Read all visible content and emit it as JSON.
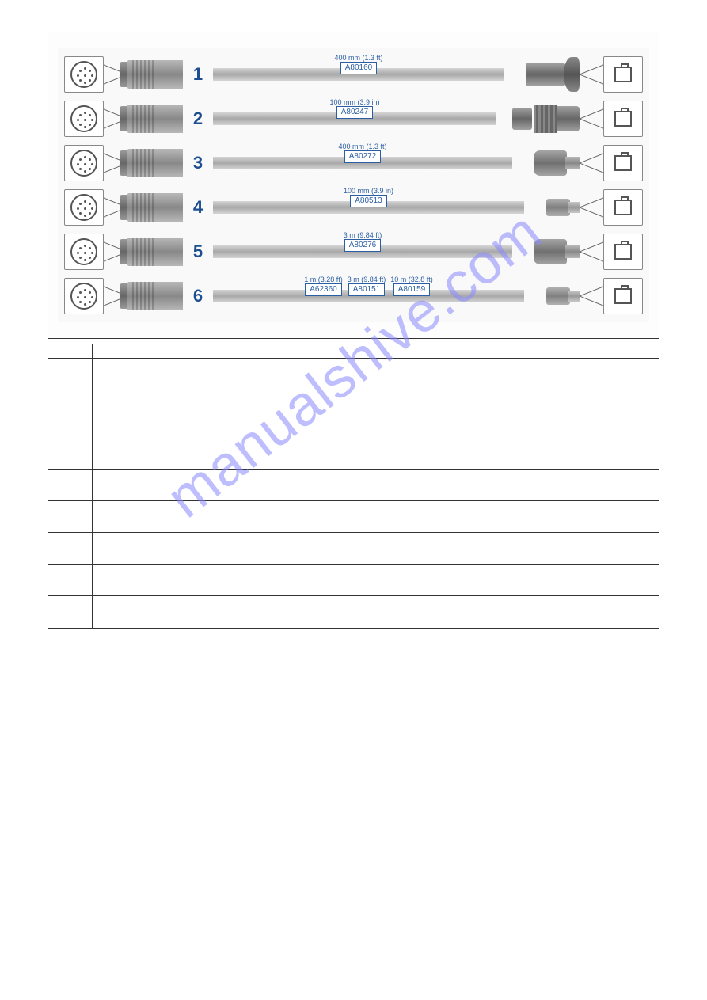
{
  "watermark_text": "manualshive.com",
  "colors": {
    "number_label": "#1d4e8f",
    "part_box_border": "#2b5fa3",
    "part_box_text": "#2b5fa3",
    "len_text": "#2b5fa3",
    "border": "#333333",
    "cable_gradient_light": "#d5d5d5",
    "cable_gradient_dark": "#a8a8a8",
    "connector_gradient_light": "#b8b8b8",
    "connector_gradient_dark": "#888888",
    "watermark": "#8a8aff"
  },
  "cables": [
    {
      "num": "1",
      "right_type": "bulkhead",
      "parts": [
        {
          "len": "400 mm (1.3 ft)",
          "part": "A80160"
        }
      ]
    },
    {
      "num": "2",
      "right_type": "gland",
      "parts": [
        {
          "len": "100 mm (3.9 in)",
          "part": "A80247"
        }
      ]
    },
    {
      "num": "3",
      "right_type": "boot",
      "parts": [
        {
          "len": "400 mm (1.3 ft)",
          "part": "A80272"
        }
      ]
    },
    {
      "num": "4",
      "right_type": "rj",
      "parts": [
        {
          "len": "100 mm (3.9 in)",
          "part": "A80513"
        }
      ]
    },
    {
      "num": "5",
      "right_type": "boot",
      "parts": [
        {
          "len": "3 m (9.84 ft)",
          "part": "A80276"
        }
      ]
    },
    {
      "num": "6",
      "right_type": "rj",
      "parts": [
        {
          "len": "1 m (3.28 ft)",
          "part": "A62360"
        },
        {
          "len": "3 m (9.84 ft)",
          "part": "A80151"
        },
        {
          "len": "10 m (32.8 ft)",
          "part": "A80159"
        }
      ]
    }
  ],
  "table": {
    "rows": [
      {
        "num": "",
        "desc": "",
        "class": "header"
      },
      {
        "num": "",
        "desc": "",
        "class": "tall"
      },
      {
        "num": "",
        "desc": "",
        "class": ""
      },
      {
        "num": "",
        "desc": "",
        "class": ""
      },
      {
        "num": "",
        "desc": "",
        "class": ""
      },
      {
        "num": "",
        "desc": "",
        "class": ""
      },
      {
        "num": "",
        "desc": "",
        "class": ""
      }
    ]
  }
}
